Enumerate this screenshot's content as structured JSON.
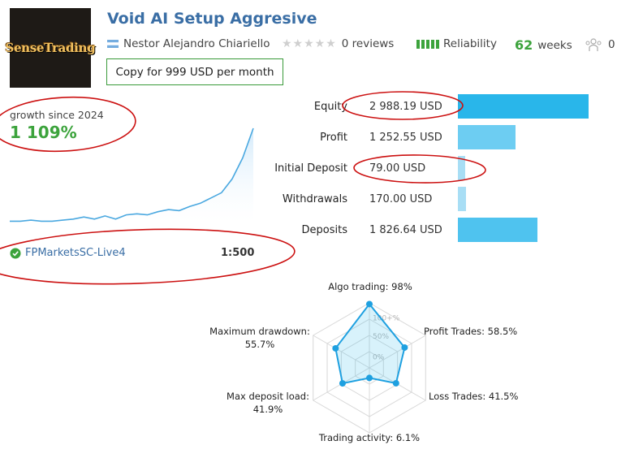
{
  "signal": {
    "logo_text": "SenseTrading",
    "title": "Void AI Setup Aggresive",
    "author": "Nestor Alejandro Chiariello",
    "reviews": "0 reviews",
    "reliability": "Reliability",
    "weeks_value": "62",
    "weeks_label": "weeks",
    "subscribers": "0",
    "copy_button": "Copy for 999 USD per month"
  },
  "growth": {
    "label": "growth since 2024",
    "value": "1 109%",
    "series": [
      2,
      2,
      3,
      2,
      2,
      3,
      4,
      6,
      4,
      7,
      4,
      8,
      9,
      8,
      11,
      13,
      12,
      16,
      19,
      24,
      29,
      42,
      62,
      90
    ]
  },
  "account": {
    "broker": "FPMarketsSC-Live4",
    "leverage": "1:500"
  },
  "stats": [
    {
      "label": "Equity",
      "value": "2 988.19 USD",
      "fill": 0.82,
      "color": "#29b6ea"
    },
    {
      "label": "Profit",
      "value": "1 252.55 USD",
      "fill": 0.36,
      "color": "#6dcdf2"
    },
    {
      "label": "Initial Deposit",
      "value": "79.00 USD",
      "fill": 0.02,
      "color": "#a8def5"
    },
    {
      "label": "Withdrawals",
      "value": "170.00 USD",
      "fill": 0.05,
      "color": "#a8def5"
    },
    {
      "label": "Deposits",
      "value": "1 826.64 USD",
      "fill": 0.5,
      "color": "#4fc3ef"
    }
  ],
  "radar": {
    "scale": [
      "100+%",
      "50%",
      "0%"
    ],
    "axes": [
      {
        "label": "Algo trading: 98%",
        "value": 0.98
      },
      {
        "label": "Profit Trades: 58.5%",
        "value": 0.585
      },
      {
        "label": "Loss Trades: 41.5%",
        "value": 0.415
      },
      {
        "label": "Trading activity: 6.1%",
        "value": 0.061
      },
      {
        "label_line1": "Max deposit load:",
        "label_line2": "41.9%",
        "value": 0.419
      },
      {
        "label_line1": "Maximum drawdown:",
        "label_line2": "55.7%",
        "value": 0.557
      }
    ]
  },
  "colors": {
    "accent": "#3a6ea5",
    "positive": "#3ca33c",
    "annotation": "#cc1111"
  }
}
